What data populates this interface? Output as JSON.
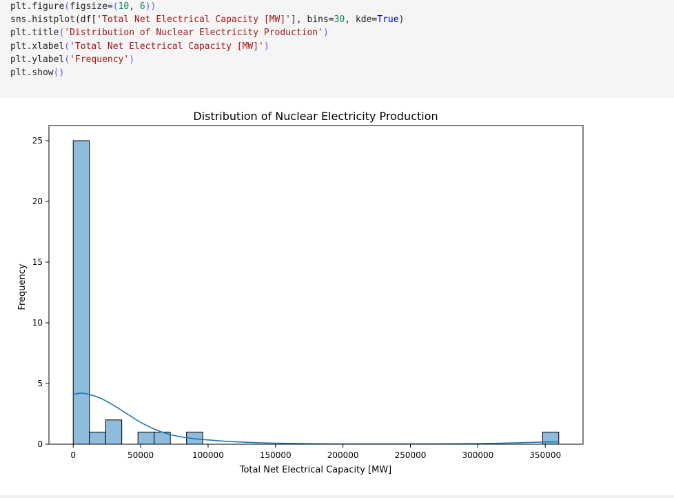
{
  "code_cell": {
    "lines": [
      [
        {
          "t": "n",
          "v": "plt.figure"
        },
        {
          "t": "p",
          "v": "("
        },
        {
          "t": "n",
          "v": "figsize="
        },
        {
          "t": "p",
          "v": "("
        },
        {
          "t": "num",
          "v": "10"
        },
        {
          "t": "n",
          "v": ", "
        },
        {
          "t": "num",
          "v": "6"
        },
        {
          "t": "p",
          "v": "))"
        }
      ],
      [
        {
          "t": "n",
          "v": "sns.histplot"
        },
        {
          "t": "n",
          "v": "(df["
        },
        {
          "t": "s",
          "v": "'Total Net Electrical Capacity [MW]'"
        },
        {
          "t": "n",
          "v": "], bins="
        },
        {
          "t": "num",
          "v": "30"
        },
        {
          "t": "n",
          "v": ", kde="
        },
        {
          "t": "k",
          "v": "True"
        },
        {
          "t": "n",
          "v": ")"
        }
      ],
      [
        {
          "t": "n",
          "v": "plt.title"
        },
        {
          "t": "p",
          "v": "("
        },
        {
          "t": "s",
          "v": "'Distribution of Nuclear Electricity Production'"
        },
        {
          "t": "p",
          "v": ")"
        }
      ],
      [
        {
          "t": "n",
          "v": "plt.xlabel"
        },
        {
          "t": "p",
          "v": "("
        },
        {
          "t": "s",
          "v": "'Total Net Electrical Capacity [MW]'"
        },
        {
          "t": "p",
          "v": ")"
        }
      ],
      [
        {
          "t": "n",
          "v": "plt.ylabel"
        },
        {
          "t": "p",
          "v": "("
        },
        {
          "t": "s",
          "v": "'Frequency'"
        },
        {
          "t": "p",
          "v": ")"
        }
      ],
      [
        {
          "t": "n",
          "v": "plt.show"
        },
        {
          "t": "p",
          "v": "()"
        }
      ]
    ]
  },
  "colors": {
    "bar_fill": "#8fbcdc",
    "bar_edge": "#000000",
    "kde_line": "#1f77b4",
    "code_bg": "#f5f5f5"
  },
  "chart_data": {
    "type": "bar",
    "title": "Distribution of Nuclear Electricity Production",
    "xlabel": "Total Net Electrical Capacity [MW]",
    "ylabel": "Frequency",
    "bin_edges": [
      0,
      12000,
      24000,
      36000,
      48000,
      60000,
      72000,
      84000,
      96000,
      108000,
      120000,
      132000,
      144000,
      156000,
      168000,
      180000,
      192000,
      204000,
      216000,
      228000,
      240000,
      252000,
      264000,
      276000,
      288000,
      300000,
      312000,
      324000,
      336000,
      348000,
      360000
    ],
    "values": [
      25,
      1,
      2,
      0,
      1,
      1,
      0,
      1,
      0,
      0,
      0,
      0,
      0,
      0,
      0,
      0,
      0,
      0,
      0,
      0,
      0,
      0,
      0,
      0,
      0,
      0,
      0,
      0,
      0,
      1
    ],
    "kde": {
      "x": [
        0,
        5000,
        10000,
        20000,
        30000,
        40000,
        50000,
        60000,
        70000,
        80000,
        90000,
        100000,
        120000,
        150000,
        200000,
        250000,
        300000,
        330000,
        350000,
        360000
      ],
      "y": [
        4.1,
        4.2,
        4.15,
        3.8,
        3.2,
        2.5,
        1.8,
        1.25,
        0.85,
        0.6,
        0.45,
        0.35,
        0.2,
        0.08,
        0.02,
        0.02,
        0.05,
        0.12,
        0.18,
        0.2
      ]
    },
    "x_ticks": [
      0,
      50000,
      100000,
      150000,
      200000,
      250000,
      300000,
      350000
    ],
    "y_ticks": [
      0,
      5,
      10,
      15,
      20,
      25
    ],
    "xlim": [
      -18000,
      378000
    ],
    "ylim": [
      0,
      26.25
    ],
    "grid": false,
    "legend": "none"
  }
}
